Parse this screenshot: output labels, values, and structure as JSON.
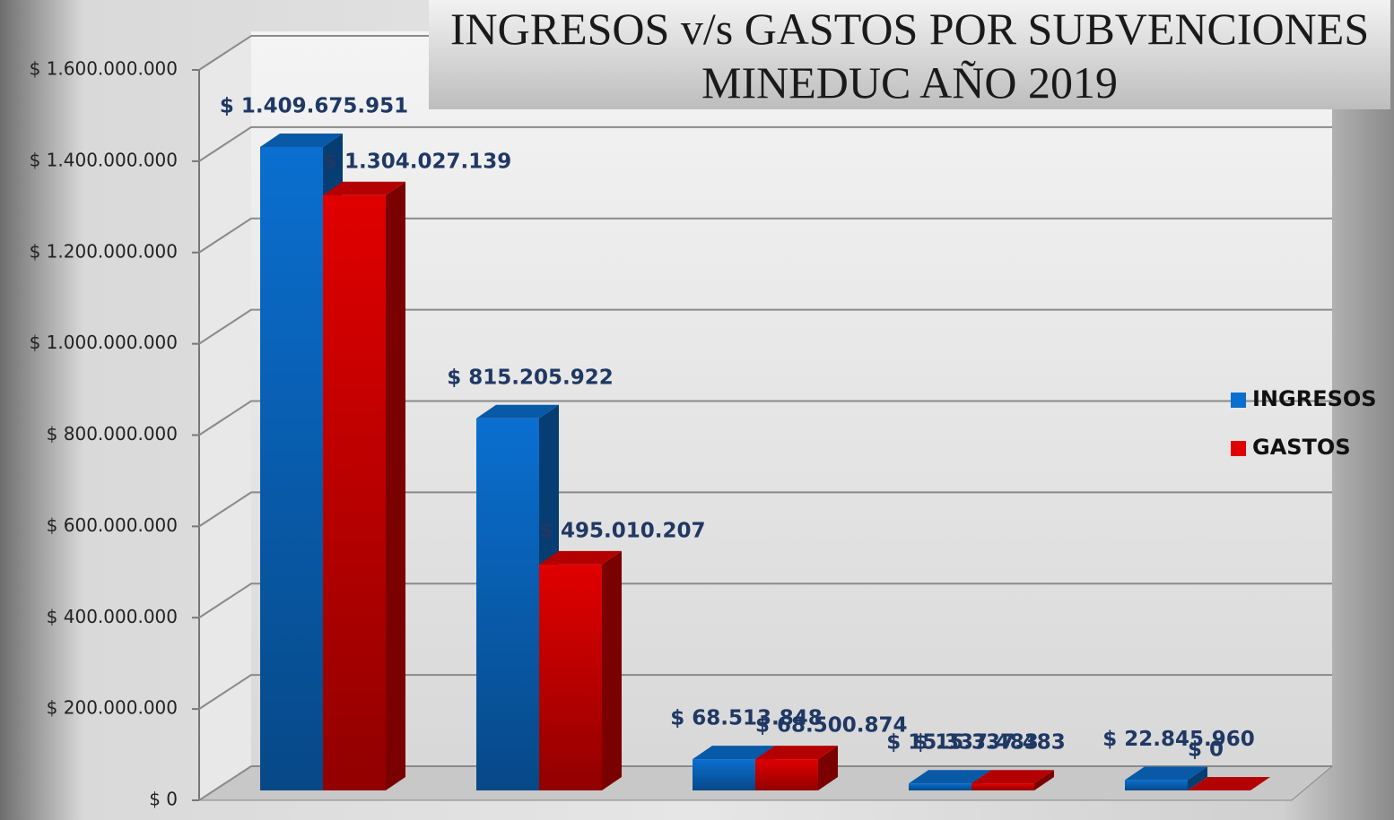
{
  "chart_data": {
    "type": "bar3d",
    "title": "INGRESOS v/s GASTOS POR SUBVENCIONES MINEDUC AÑO 2019",
    "categories": [
      null,
      null,
      null,
      null,
      null
    ],
    "series": [
      {
        "name": "INGRESOS",
        "color": "#0a6fd0",
        "values": [
          1409675951,
          815205922,
          68513848,
          15337483,
          22845960
        ],
        "value_labels": [
          "$ 1.409.675.951",
          "$ 815.205.922",
          "$ 68.513.848",
          "$ 15.337.483",
          "$ 22.845.960"
        ]
      },
      {
        "name": "GASTOS",
        "color": "#e00000",
        "values": [
          1304027139,
          495010207,
          68500874,
          15337483,
          0
        ],
        "value_labels": [
          "$ 1.304.027.139",
          "$ 495.010.207",
          "$ 68.500.874",
          "$ 15.337.483",
          "$ 0"
        ]
      }
    ],
    "ylim": [
      0,
      1600000000
    ],
    "yticks": [
      {
        "value": 0,
        "label": "$ 0"
      },
      {
        "value": 200000000,
        "label": "$ 200.000.000"
      },
      {
        "value": 400000000,
        "label": "$ 400.000.000"
      },
      {
        "value": 600000000,
        "label": "$ 600.000.000"
      },
      {
        "value": 800000000,
        "label": "$ 800.000.000"
      },
      {
        "value": 1000000000,
        "label": "$ 1.000.000.000"
      },
      {
        "value": 1200000000,
        "label": "$ 1.200.000.000"
      },
      {
        "value": 1400000000,
        "label": "$ 1.400.000.000"
      },
      {
        "value": 1600000000,
        "label": "$ 1.600.000.000"
      }
    ],
    "grid": true,
    "legend": "right"
  }
}
